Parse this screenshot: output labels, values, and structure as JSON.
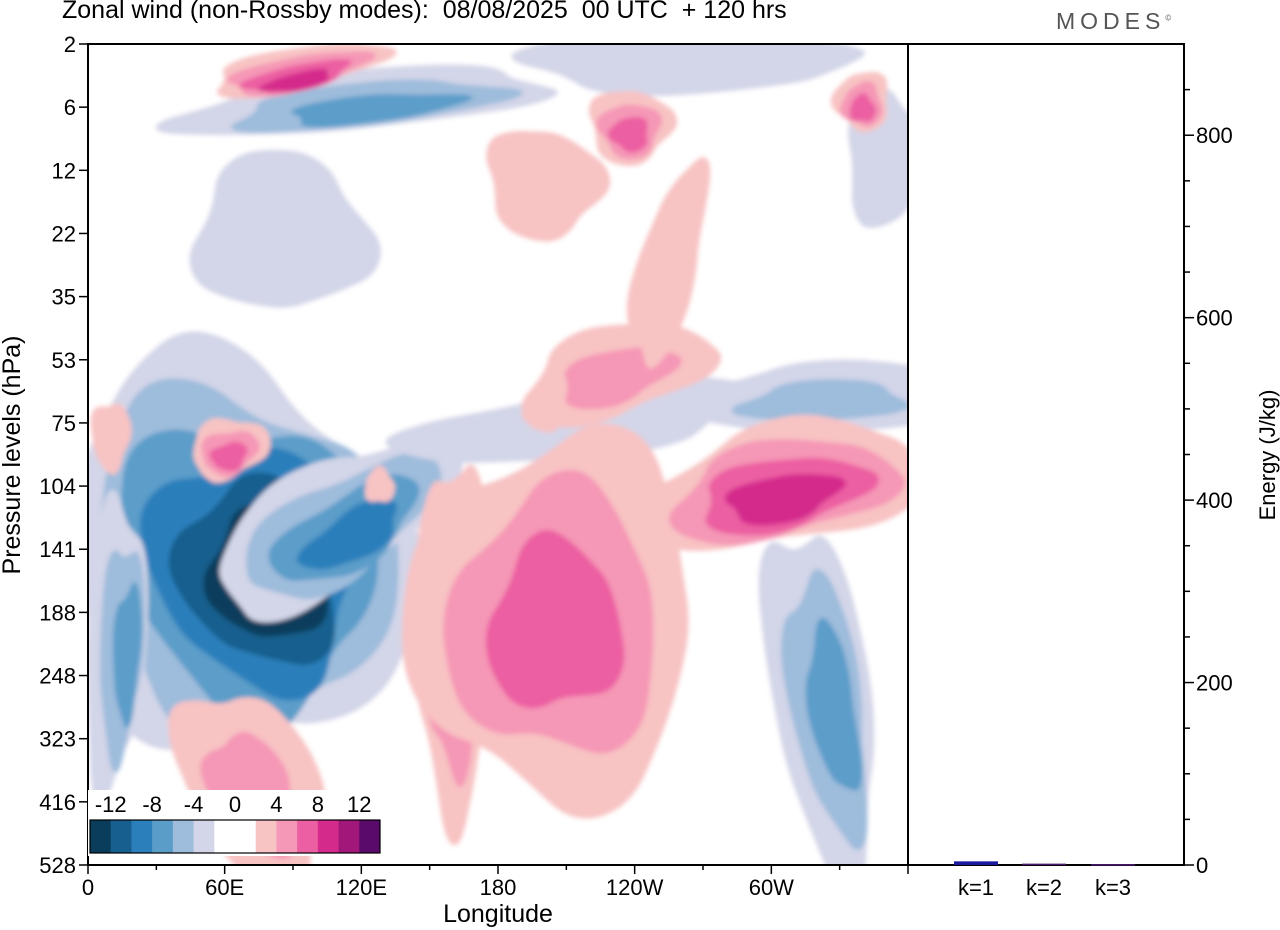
{
  "brand": {
    "name": "MODES",
    "mark": "©"
  },
  "chart_data": [
    {
      "type": "heatmap",
      "title": "Zonal wind (non-Rossby modes):  08/08/2025  00 UTC  + 120 hrs",
      "xlabel": "Longitude",
      "ylabel": "Pressure levels (hPa)",
      "x_ticks": [
        "0",
        "60E",
        "120E",
        "180",
        "120W",
        "60W"
      ],
      "x_tick_values": [
        0,
        60,
        120,
        180,
        240,
        300
      ],
      "xlim": [
        0,
        360
      ],
      "y_ticks": [
        "2",
        "6",
        "12",
        "22",
        "35",
        "53",
        "75",
        "104",
        "141",
        "188",
        "248",
        "323",
        "416",
        "528"
      ],
      "y_scale": "pressure levels, top=2 hPa bottom=528 hPa",
      "colorbar": {
        "labels": [
          "-12",
          "-8",
          "-4",
          "0",
          "4",
          "8",
          "12"
        ],
        "colors": [
          "#0a3d5c",
          "#175f8e",
          "#2b7fbb",
          "#5b9dc9",
          "#9ebcdc",
          "#d3d5e8",
          "#ffffff",
          "#ffffff",
          "#f8c3c3",
          "#f597b6",
          "#ec5fa2",
          "#d42a8c",
          "#a2187a",
          "#5a0a6a"
        ],
        "placement": "bottom-left"
      },
      "features": [
        {
          "sign": "negative",
          "peak": -14,
          "lon": 65,
          "level": "141",
          "note": "strong easterly core"
        },
        {
          "sign": "negative",
          "peak": -6,
          "lon": 110,
          "level": "104"
        },
        {
          "sign": "negative",
          "peak": -6,
          "lon": 12,
          "level": "248"
        },
        {
          "sign": "negative",
          "peak": -6,
          "lon": 325,
          "level": "323"
        },
        {
          "sign": "positive",
          "peak": 8,
          "lon": 160,
          "level": "188"
        },
        {
          "sign": "positive",
          "peak": 8,
          "lon": 205,
          "level": "188"
        },
        {
          "sign": "positive",
          "peak": 8,
          "lon": 305,
          "level": "141"
        },
        {
          "sign": "positive",
          "peak": 6,
          "lon": 235,
          "level": "53"
        },
        {
          "sign": "positive",
          "peak": 10,
          "lon": 100,
          "level": "2"
        },
        {
          "sign": "positive",
          "peak": 6,
          "lon": 240,
          "level": "6"
        },
        {
          "sign": "negative",
          "peak": -6,
          "lon": 120,
          "level": "6"
        }
      ]
    },
    {
      "type": "bar",
      "categories": [
        "k=1",
        "k=2",
        "k=3"
      ],
      "values": [
        4,
        1.5,
        1
      ],
      "ylabel": "Energy (J/kg)",
      "ylim": [
        0,
        900
      ],
      "y_ticks": [
        "0",
        "200",
        "400",
        "600",
        "800"
      ],
      "y_tick_values": [
        0,
        200,
        400,
        600,
        800
      ],
      "colors": [
        "#1a1aa0",
        "#4a1a70",
        "#4a1a70"
      ]
    }
  ]
}
